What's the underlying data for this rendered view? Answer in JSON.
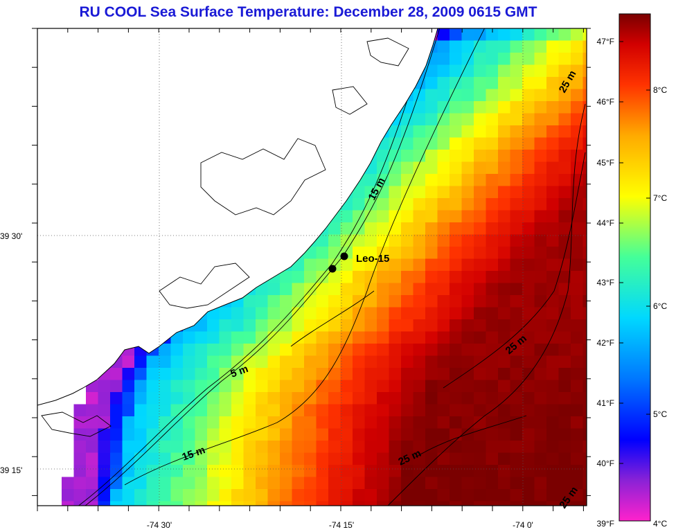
{
  "title": "RU COOL  Sea Surface Temperature:  December 28, 2009 0615 GMT",
  "lat_labels": [
    "39 30'",
    "39 15'"
  ],
  "lon_labels": [
    "-74 30'",
    "-74 15'",
    "-74 0'"
  ],
  "station": {
    "name": "Leo-15"
  },
  "contour_labels": [
    "5 m",
    "15 m",
    "15 m",
    "25 m",
    "25 m",
    "25 m",
    "25 m"
  ],
  "colorbar": {
    "fahrenheit_labels": [
      "47°F",
      "46°F",
      "45°F",
      "44°F",
      "43°F",
      "42°F",
      "41°F",
      "40°F",
      "39°F"
    ],
    "celsius_labels": [
      "8°C",
      "7°C",
      "6°C",
      "5°C",
      "4°C"
    ],
    "range_c": [
      4,
      8.7
    ],
    "colors": [
      "#ff22cc",
      "#8a22d6",
      "#0000ff",
      "#0077ff",
      "#00d8ff",
      "#44ff99",
      "#ffff00",
      "#ffaa00",
      "#ff3300",
      "#d20000",
      "#7a0000"
    ]
  }
}
